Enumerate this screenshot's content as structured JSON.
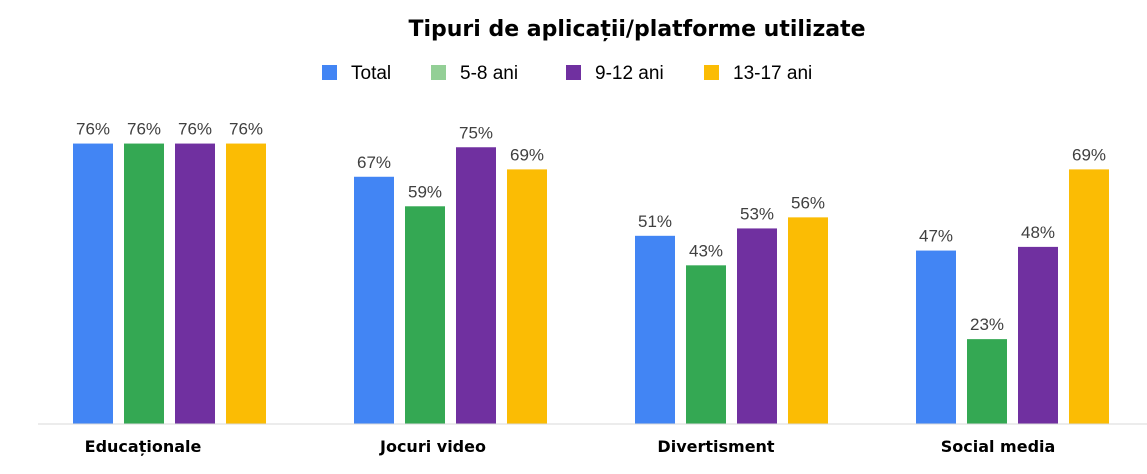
{
  "chart_data": {
    "type": "bar",
    "title": "Tipuri de aplicații/platforme utilizate",
    "categories": [
      "Educaționale",
      "Jocuri video",
      "Divertisment",
      "Social media"
    ],
    "series": [
      {
        "name": "Total",
        "color": "#4285f4",
        "values": [
          76,
          67,
          51,
          47
        ]
      },
      {
        "name": "5-8 ani",
        "color": "#34a853",
        "legend_color": "#93cf96",
        "values": [
          76,
          59,
          43,
          23
        ]
      },
      {
        "name": "9-12 ani",
        "color": "#7030a0",
        "values": [
          76,
          75,
          53,
          48
        ]
      },
      {
        "name": "13-17 ani",
        "color": "#fbbc04",
        "values": [
          76,
          69,
          56,
          69
        ]
      }
    ],
    "value_suffix": "%",
    "ylim": [
      0,
      100
    ],
    "grid": false,
    "legend_position": "top"
  }
}
